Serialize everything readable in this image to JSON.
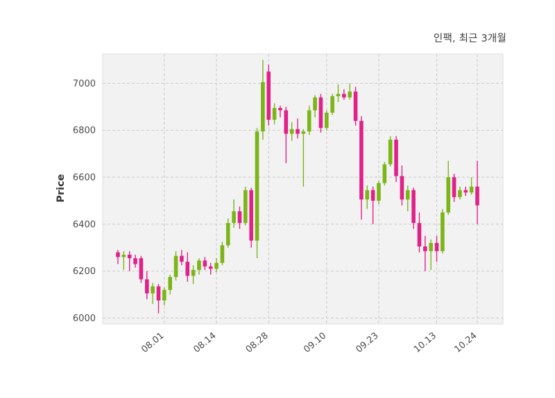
{
  "chart_data": {
    "type": "candlestick",
    "title": "인팩, 최근 3개월",
    "ylabel": "Price",
    "xlabel": "",
    "y_ticks": [
      6000,
      6200,
      6400,
      6600,
      6800,
      7000
    ],
    "ylim": [
      5975,
      7125
    ],
    "x_ticks": [
      {
        "index": 8,
        "label": "08.01"
      },
      {
        "index": 17,
        "label": "08.14"
      },
      {
        "index": 26,
        "label": "08.28"
      },
      {
        "index": 36,
        "label": "09.10"
      },
      {
        "index": 45,
        "label": "09.23"
      },
      {
        "index": 55,
        "label": "10.13"
      },
      {
        "index": 62,
        "label": "10.24"
      }
    ],
    "grid": "dashed-both-axes",
    "legend": "none",
    "colors": {
      "up": "#7cb518",
      "down": "#e0218a",
      "plot_bg": "#f2f2f2",
      "grid": "#c9c9c9",
      "text": "#4a4a4a",
      "border": "#dddddd"
    },
    "candles_format": [
      "open",
      "high",
      "low",
      "close"
    ],
    "candles": [
      [
        6280,
        6290,
        6230,
        6260
      ],
      [
        6260,
        6285,
        6205,
        6270
      ],
      [
        6270,
        6285,
        6200,
        6255
      ],
      [
        6255,
        6270,
        6215,
        6230
      ],
      [
        6255,
        6265,
        6150,
        6165
      ],
      [
        6165,
        6200,
        6080,
        6105
      ],
      [
        6105,
        6150,
        6060,
        6135
      ],
      [
        6135,
        6145,
        6020,
        6075
      ],
      [
        6075,
        6130,
        6055,
        6120
      ],
      [
        6120,
        6185,
        6100,
        6175
      ],
      [
        6175,
        6285,
        6160,
        6265
      ],
      [
        6265,
        6290,
        6225,
        6240
      ],
      [
        6240,
        6280,
        6155,
        6180
      ],
      [
        6180,
        6225,
        6145,
        6205
      ],
      [
        6205,
        6255,
        6185,
        6245
      ],
      [
        6245,
        6260,
        6205,
        6220
      ],
      [
        6220,
        6235,
        6185,
        6210
      ],
      [
        6210,
        6255,
        6195,
        6235
      ],
      [
        6235,
        6325,
        6225,
        6310
      ],
      [
        6310,
        6425,
        6300,
        6405
      ],
      [
        6405,
        6505,
        6385,
        6455
      ],
      [
        6455,
        6475,
        6380,
        6405
      ],
      [
        6405,
        6560,
        6395,
        6545
      ],
      [
        6545,
        6555,
        6300,
        6330
      ],
      [
        6330,
        6810,
        6255,
        6795
      ],
      [
        6795,
        7100,
        6760,
        7005
      ],
      [
        7050,
        7080,
        6820,
        6845
      ],
      [
        6845,
        6915,
        6825,
        6895
      ],
      [
        6895,
        6905,
        6855,
        6885
      ],
      [
        6885,
        6900,
        6660,
        6785
      ],
      [
        6785,
        6835,
        6755,
        6805
      ],
      [
        6805,
        6850,
        6765,
        6785
      ],
      [
        6785,
        6805,
        6560,
        6795
      ],
      [
        6795,
        6905,
        6780,
        6885
      ],
      [
        6885,
        6950,
        6855,
        6940
      ],
      [
        6940,
        6955,
        6790,
        6810
      ],
      [
        6810,
        6885,
        6800,
        6875
      ],
      [
        6875,
        6955,
        6865,
        6945
      ],
      [
        6945,
        6995,
        6920,
        6955
      ],
      [
        6955,
        6975,
        6930,
        6940
      ],
      [
        6940,
        7000,
        6930,
        6965
      ],
      [
        6965,
        6985,
        6820,
        6840
      ],
      [
        6840,
        6860,
        6420,
        6505
      ],
      [
        6505,
        6565,
        6465,
        6545
      ],
      [
        6545,
        6560,
        6400,
        6500
      ],
      [
        6500,
        6585,
        6485,
        6575
      ],
      [
        6575,
        6665,
        6565,
        6655
      ],
      [
        6655,
        6775,
        6645,
        6760
      ],
      [
        6760,
        6775,
        6580,
        6605
      ],
      [
        6605,
        6650,
        6480,
        6505
      ],
      [
        6505,
        6565,
        6455,
        6545
      ],
      [
        6545,
        6555,
        6380,
        6405
      ],
      [
        6405,
        6450,
        6280,
        6305
      ],
      [
        6305,
        6350,
        6200,
        6285
      ],
      [
        6285,
        6335,
        6205,
        6320
      ],
      [
        6320,
        6350,
        6240,
        6285
      ],
      [
        6285,
        6465,
        6275,
        6450
      ],
      [
        6450,
        6670,
        6440,
        6600
      ],
      [
        6600,
        6615,
        6495,
        6515
      ],
      [
        6515,
        6560,
        6505,
        6545
      ],
      [
        6545,
        6560,
        6520,
        6535
      ],
      [
        6535,
        6600,
        6525,
        6560
      ],
      [
        6560,
        6670,
        6400,
        6480
      ]
    ]
  }
}
